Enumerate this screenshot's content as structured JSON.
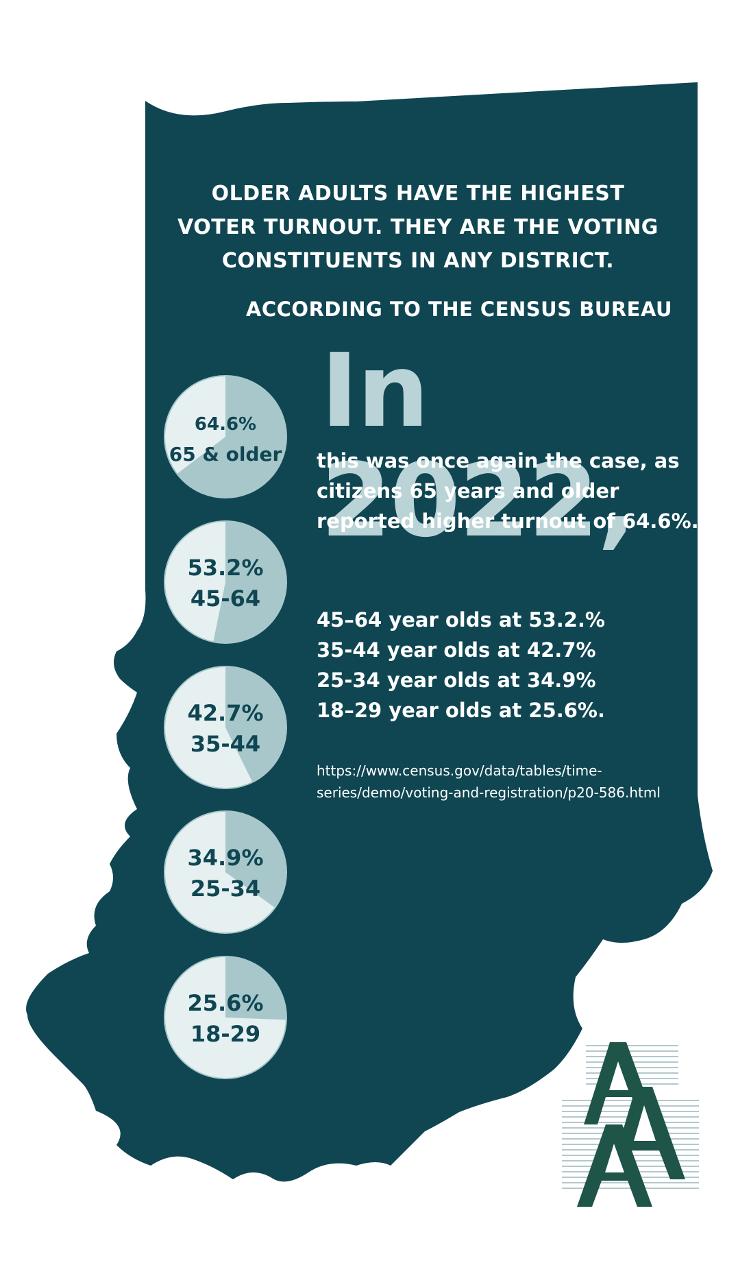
{
  "headline": [
    "OLDER ADULTS HAVE THE HIGHEST",
    "VOTER TURNOUT. THEY ARE THE VOTING",
    "CONSTITUENTS IN ANY DISTRICT."
  ],
  "source_line": "ACCORDING TO THE CENSUS BUREAU",
  "big_year": "In 2022,",
  "lead_text": "this was once again the case, as citizens 65 years and older reported higher turnout of 64.6%.",
  "stat_lines": [
    "45–64 year olds at 53.2.%",
    "35-44 year olds at 42.7%",
    "25-34 year olds at 34.9%",
    "18–29 year olds at 25.6%."
  ],
  "source_url": "https://www.census.gov/data/tables/time-series/demo/voting-and-registration/p20-586.html",
  "colors": {
    "state_fill": "#0f4652",
    "pie_light": "#e6f0f1",
    "pie_filled": "#a8c7cb",
    "big_year": "#b9d3d6",
    "page_background": "#ffffff"
  },
  "logo_icon": "stacked-a-logo-icon",
  "chart_data": {
    "type": "pie",
    "title": "",
    "categories": [
      "65 & older",
      "45-64",
      "35-44",
      "25-34",
      "18-29"
    ],
    "values": [
      64.6,
      53.2,
      42.7,
      34.9,
      25.6
    ],
    "value_labels": [
      "64.6%",
      "53.2%",
      "42.7%",
      "34.9%",
      "25.6%"
    ],
    "unit": "%",
    "grid": false,
    "legend": "none"
  }
}
